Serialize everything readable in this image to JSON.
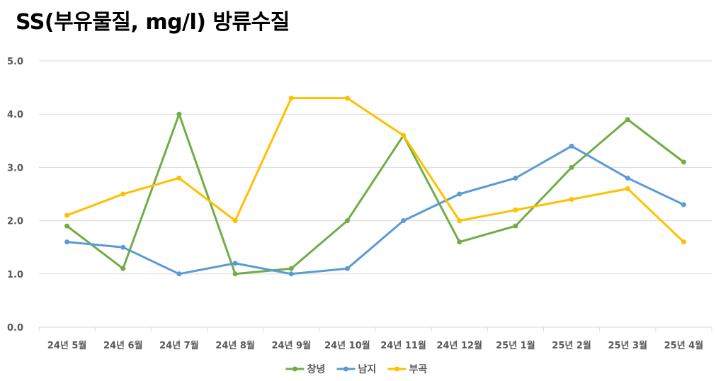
{
  "chart_data": {
    "type": "line",
    "title": "SS(부유물질, mg/l) 방류수질",
    "xlabel": "",
    "ylabel": "",
    "ylim": [
      0,
      5
    ],
    "yticks": [
      "0.0",
      "1.0",
      "2.0",
      "3.0",
      "4.0",
      "5.0"
    ],
    "grid": true,
    "legend_position": "bottom",
    "categories": [
      "24년 5월",
      "24년 6월",
      "24년 7월",
      "24년 8월",
      "24년 9월",
      "24년 10월",
      "24년 11월",
      "24년 12월",
      "25년 1월",
      "25년 2월",
      "25년 3월",
      "25년 4월"
    ],
    "series": [
      {
        "name": "창녕",
        "color": "#70AD47",
        "values": [
          1.9,
          1.1,
          4.0,
          1.0,
          1.1,
          2.0,
          3.6,
          1.6,
          1.9,
          3.0,
          3.9,
          3.1
        ]
      },
      {
        "name": "남지",
        "color": "#5B9BD5",
        "values": [
          1.6,
          1.5,
          1.0,
          1.2,
          1.0,
          1.1,
          2.0,
          2.5,
          2.8,
          3.4,
          2.8,
          2.3
        ]
      },
      {
        "name": "부곡",
        "color": "#FFC000",
        "values": [
          2.1,
          2.5,
          2.8,
          2.0,
          4.3,
          4.3,
          3.6,
          2.0,
          2.2,
          2.4,
          2.6,
          1.6
        ]
      }
    ]
  }
}
